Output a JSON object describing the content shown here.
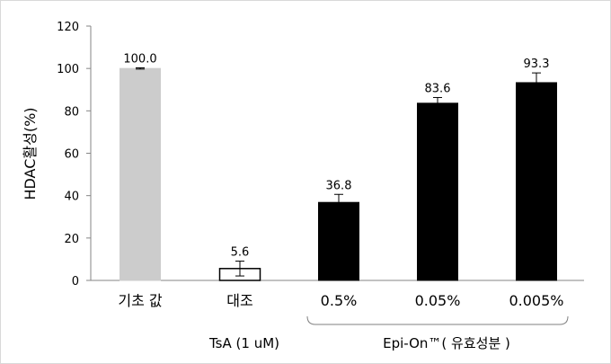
{
  "chart_data": {
    "type": "bar",
    "ylabel": "HDAC활성(%)",
    "ylim": [
      0,
      120
    ],
    "yticks": [
      "0",
      "20",
      "40",
      "60",
      "80",
      "100",
      "120"
    ],
    "categories": [
      "기초 값",
      "대조",
      "0.5%",
      "0.05%",
      "0.005%"
    ],
    "values": [
      100.0,
      5.6,
      36.8,
      83.6,
      93.3
    ],
    "errors": [
      0.3,
      3.5,
      3.8,
      2.7,
      4.6
    ],
    "data_labels": [
      "100.0",
      "5.6",
      "36.8",
      "83.6",
      "93.3"
    ],
    "bar_styles": [
      {
        "fill": "#cccccc",
        "stroke": "#cccccc"
      },
      {
        "fill": "#ffffff",
        "stroke": "#000000"
      },
      {
        "fill": "#000000",
        "stroke": "#000000"
      },
      {
        "fill": "#000000",
        "stroke": "#000000"
      },
      {
        "fill": "#000000",
        "stroke": "#000000"
      }
    ],
    "group_labels": [
      {
        "text": "TsA (1 uM)",
        "category_index": 1
      },
      {
        "text": "Epi-On™( 유효성분 )",
        "start_index": 2,
        "end_index": 4
      }
    ],
    "grid": false
  }
}
